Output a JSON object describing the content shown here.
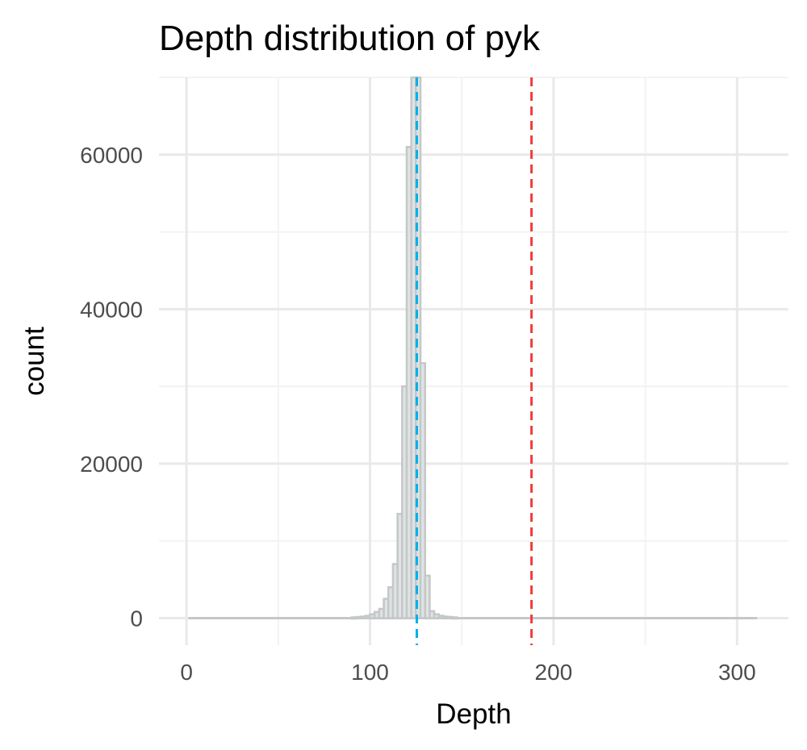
{
  "chart_data": {
    "type": "histogram",
    "title": "Depth distribution of pyk",
    "xlabel": "Depth",
    "ylabel": "count",
    "xlim": [
      -15,
      328
    ],
    "ylim": [
      -3500,
      70000
    ],
    "x_ticks": [
      0,
      100,
      200,
      300
    ],
    "x_tick_labels": [
      "0",
      "100",
      "200",
      "300"
    ],
    "y_ticks": [
      0,
      20000,
      40000,
      60000
    ],
    "y_tick_labels": [
      "0",
      "20000",
      "40000",
      "60000"
    ],
    "grid": true,
    "legend": "none",
    "bin_width": 2.5,
    "bins": [
      {
        "x": 90,
        "count": 100
      },
      {
        "x": 92.5,
        "count": 150
      },
      {
        "x": 95,
        "count": 200
      },
      {
        "x": 97.5,
        "count": 300
      },
      {
        "x": 100,
        "count": 500
      },
      {
        "x": 102.5,
        "count": 800
      },
      {
        "x": 105,
        "count": 1200
      },
      {
        "x": 107.5,
        "count": 2500
      },
      {
        "x": 110,
        "count": 4000
      },
      {
        "x": 112.5,
        "count": 7000
      },
      {
        "x": 115,
        "count": 13500
      },
      {
        "x": 117.5,
        "count": 30000
      },
      {
        "x": 120,
        "count": 61000
      },
      {
        "x": 122.5,
        "count": 70000
      },
      {
        "x": 125,
        "count": 70000
      },
      {
        "x": 127.5,
        "count": 33000
      },
      {
        "x": 130,
        "count": 5500
      },
      {
        "x": 132.5,
        "count": 900
      },
      {
        "x": 135,
        "count": 500
      },
      {
        "x": 137.5,
        "count": 300
      },
      {
        "x": 140,
        "count": 200
      },
      {
        "x": 142.5,
        "count": 150
      },
      {
        "x": 145,
        "count": 100
      }
    ],
    "baseline": {
      "x_from": 1,
      "x_to": 311,
      "count": 0
    },
    "reference_lines": [
      {
        "x": 125.5,
        "color": "#00b0e8"
      },
      {
        "x": 188,
        "color": "#f03c3c"
      }
    ],
    "colors": {
      "bar_fill": "#dfe3e3",
      "bar_outline": "#c4c8c8",
      "grid_major": "#e9e9e9",
      "grid_minor": "#f3f3f3",
      "tick_text": "#4d4d4d"
    }
  }
}
